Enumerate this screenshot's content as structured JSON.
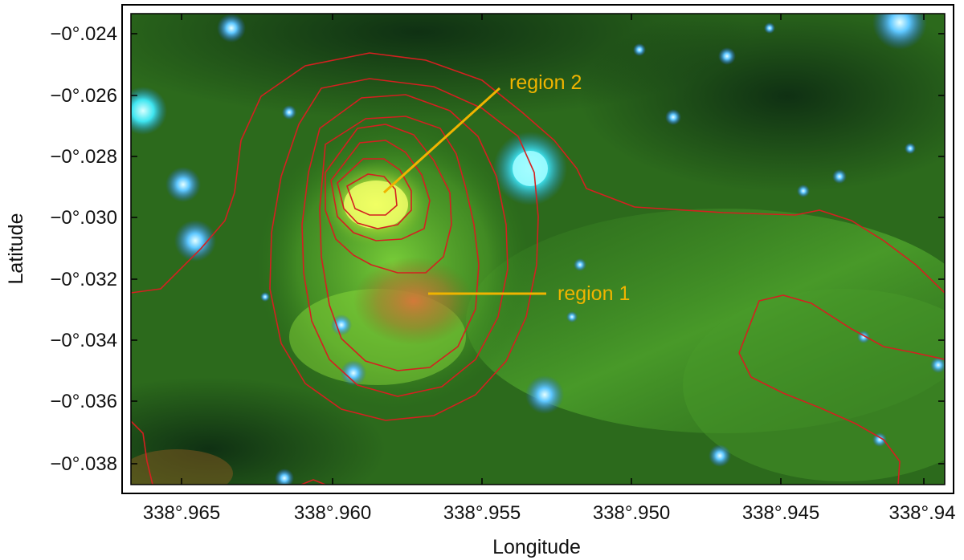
{
  "image": {
    "description_free": true
  },
  "axes": {
    "xlabel": "Longitude",
    "ylabel": "Latitude",
    "x_ticks": [
      "338°.965",
      "338°.960",
      "338°.955",
      "338°.950",
      "338°.945",
      "338°.94"
    ],
    "y_ticks": [
      "−0°.024",
      "−0°.026",
      "−0°.028",
      "−0°.030",
      "−0°.032",
      "−0°.034",
      "−0°.036",
      "−0°.038"
    ]
  },
  "annotations": [
    {
      "label": "region 2"
    },
    {
      "label": "region 1"
    }
  ],
  "colors": {
    "annotation": "#f0b400",
    "contour": "#d42020",
    "background_green": "#2f7a1c",
    "star_blue": "#3d8cff"
  }
}
